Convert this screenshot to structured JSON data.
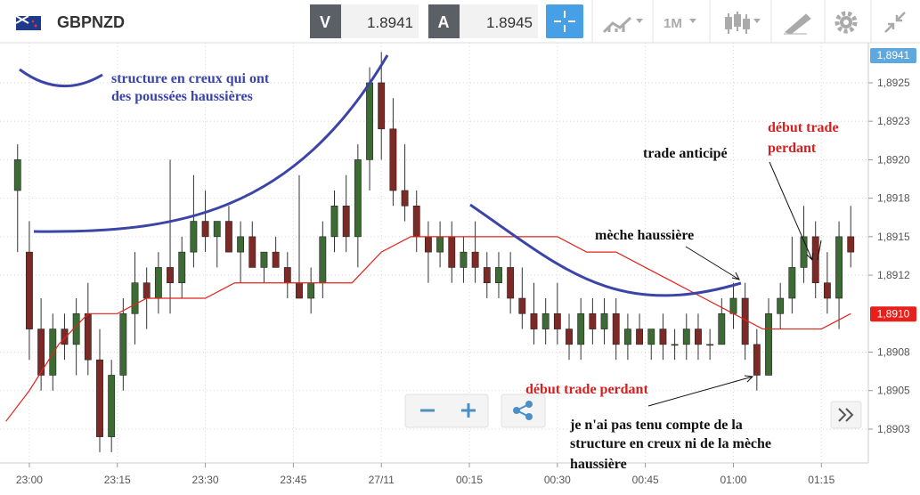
{
  "toolbar": {
    "symbol": "GBPNZD",
    "sell_label": "V",
    "sell_price": "1.8941",
    "buy_label": "A",
    "buy_price": "1.8945",
    "timeframe": "1M"
  },
  "chart_data": {
    "type": "candlestick",
    "x": [
      -2,
      0,
      2,
      4,
      6,
      8,
      10,
      12,
      14,
      16,
      18,
      20,
      22,
      24,
      26,
      28,
      30,
      32,
      34,
      36,
      38,
      40,
      42,
      44,
      46,
      48,
      50,
      52,
      54,
      56,
      58,
      60,
      62,
      64,
      66,
      68,
      70,
      72,
      74,
      76,
      78,
      80,
      82,
      84,
      86,
      88,
      90,
      92,
      94,
      96,
      98,
      100,
      102,
      104,
      106,
      108,
      110,
      112,
      114,
      116,
      118,
      120,
      122,
      124,
      126,
      128,
      130,
      132,
      134,
      136,
      138,
      140
    ],
    "open": [
      1.8918,
      1.8914,
      1.8909,
      1.8906,
      1.8909,
      1.8908,
      1.891,
      1.8907,
      1.8902,
      1.8906,
      1.891,
      1.8912,
      1.8911,
      1.8913,
      1.8912,
      1.8914,
      1.8916,
      1.8915,
      1.8916,
      1.8914,
      1.8915,
      1.8913,
      1.8914,
      1.8913,
      1.8912,
      1.8911,
      1.8912,
      1.8915,
      1.8917,
      1.8915,
      1.892,
      1.8925,
      1.8922,
      1.8918,
      1.8917,
      1.8915,
      1.8914,
      1.8915,
      1.8913,
      1.8914,
      1.8913,
      1.8912,
      1.8913,
      1.8911,
      1.891,
      1.8909,
      1.891,
      1.8909,
      1.8908,
      1.891,
      1.8909,
      1.891,
      1.8908,
      1.8909,
      1.8908,
      1.8909,
      1.8908,
      1.8908,
      1.8909,
      1.8908,
      1.8908,
      1.891,
      1.8911,
      1.8908,
      1.8906,
      1.891,
      1.8911,
      1.8913,
      1.8915,
      1.8912,
      1.8911,
      1.8915
    ],
    "high": [
      1.8921,
      1.8916,
      1.8911,
      1.891,
      1.891,
      1.8911,
      1.8912,
      1.8909,
      1.8907,
      1.8911,
      1.8914,
      1.8913,
      1.8914,
      1.892,
      1.8915,
      1.8919,
      1.8918,
      1.8916,
      1.8917,
      1.8916,
      1.8916,
      1.8914,
      1.8915,
      1.8914,
      1.8919,
      1.8913,
      1.8916,
      1.8918,
      1.8919,
      1.8921,
      1.8926,
      1.8927,
      1.8924,
      1.8921,
      1.8918,
      1.8916,
      1.8916,
      1.8916,
      1.8915,
      1.8916,
      1.8914,
      1.8914,
      1.8914,
      1.8913,
      1.8912,
      1.8911,
      1.8912,
      1.891,
      1.8911,
      1.8911,
      1.8911,
      1.8911,
      1.891,
      1.891,
      1.8909,
      1.891,
      1.8909,
      1.891,
      1.891,
      1.8909,
      1.8911,
      1.8912,
      1.8912,
      1.8909,
      1.8911,
      1.8912,
      1.8915,
      1.8917,
      1.8916,
      1.8914,
      1.8916,
      1.8917
    ],
    "low": [
      1.8914,
      1.8907,
      1.8905,
      1.8905,
      1.8907,
      1.8906,
      1.8906,
      1.8901,
      1.8901,
      1.8905,
      1.8908,
      1.8909,
      1.891,
      1.891,
      1.8911,
      1.8913,
      1.8914,
      1.8913,
      1.8914,
      1.8912,
      1.8913,
      1.8912,
      1.8913,
      1.8911,
      1.8911,
      1.891,
      1.8911,
      1.8914,
      1.8914,
      1.8913,
      1.8918,
      1.892,
      1.8917,
      1.8916,
      1.8914,
      1.8912,
      1.8913,
      1.8912,
      1.8912,
      1.8912,
      1.8911,
      1.8911,
      1.891,
      1.8909,
      1.8908,
      1.8908,
      1.8908,
      1.8907,
      1.8907,
      1.8908,
      1.8908,
      1.8907,
      1.8907,
      1.8908,
      1.8907,
      1.8907,
      1.8907,
      1.8907,
      1.8907,
      1.8907,
      1.8908,
      1.8909,
      1.8907,
      1.8905,
      1.8906,
      1.8909,
      1.891,
      1.8912,
      1.8911,
      1.891,
      1.8909,
      1.8913
    ],
    "close": [
      1.892,
      1.8909,
      1.8906,
      1.8909,
      1.8908,
      1.891,
      1.8907,
      1.8902,
      1.8906,
      1.891,
      1.8912,
      1.8911,
      1.8913,
      1.8912,
      1.8914,
      1.8916,
      1.8915,
      1.8916,
      1.8914,
      1.8915,
      1.8913,
      1.8914,
      1.8913,
      1.8912,
      1.8911,
      1.8912,
      1.8915,
      1.8917,
      1.8915,
      1.892,
      1.8925,
      1.8922,
      1.8918,
      1.8917,
      1.8915,
      1.8914,
      1.8915,
      1.8913,
      1.8914,
      1.8913,
      1.8912,
      1.8913,
      1.8911,
      1.891,
      1.8909,
      1.891,
      1.8909,
      1.8908,
      1.891,
      1.8909,
      1.891,
      1.8908,
      1.8909,
      1.8908,
      1.8909,
      1.8908,
      1.8908,
      1.8909,
      1.8908,
      1.8908,
      1.891,
      1.8911,
      1.8908,
      1.8906,
      1.891,
      1.8911,
      1.8913,
      1.8915,
      1.8912,
      1.8911,
      1.8915,
      1.8914
    ],
    "up_color": "#3d6b34",
    "down_color": "#7d2a26",
    "xlim": [
      -5,
      143
    ],
    "xticks": [
      {
        "value": 0,
        "label": "23:00"
      },
      {
        "value": 15,
        "label": "23:15"
      },
      {
        "value": 30,
        "label": "23:30"
      },
      {
        "value": 45,
        "label": "23:45"
      },
      {
        "value": 60,
        "label": "27/11"
      },
      {
        "value": 75,
        "label": "00:15"
      },
      {
        "value": 90,
        "label": "00:30"
      },
      {
        "value": 105,
        "label": "00:45"
      },
      {
        "value": 120,
        "label": "01:00"
      },
      {
        "value": 135,
        "label": "01:15"
      }
    ],
    "ylim": [
      1.89003,
      1.89276
    ],
    "yticks": [
      {
        "value": 1.8925,
        "label": "1,8925"
      },
      {
        "value": 1.89225,
        "label": "1,8923"
      },
      {
        "value": 1.892,
        "label": "1,8920"
      },
      {
        "value": 1.89175,
        "label": "1,8918"
      },
      {
        "value": 1.8915,
        "label": "1,8915"
      },
      {
        "value": 1.89125,
        "label": "1,8912"
      },
      {
        "value": 1.89075,
        "label": "1,8908"
      },
      {
        "value": 1.8905,
        "label": "1,8905"
      },
      {
        "value": 1.89025,
        "label": "1,8903"
      }
    ],
    "grid": true,
    "moving_average": {
      "color": "#e2231a",
      "x": [
        -4,
        0,
        5,
        10,
        15,
        20,
        25,
        30,
        35,
        40,
        45,
        50,
        55,
        60,
        65,
        70,
        75,
        80,
        85,
        90,
        95,
        100,
        105,
        110,
        115,
        120,
        125,
        130,
        135,
        140
      ],
      "values": [
        1.8903,
        1.8905,
        1.8908,
        1.891,
        1.891,
        1.8911,
        1.8911,
        1.8911,
        1.8912,
        1.8912,
        1.8912,
        1.8912,
        1.8912,
        1.8914,
        1.8915,
        1.8915,
        1.8915,
        1.8915,
        1.8915,
        1.8915,
        1.8914,
        1.8914,
        1.8913,
        1.8912,
        1.8911,
        1.891,
        1.8909,
        1.8909,
        1.8909,
        1.891
      ]
    },
    "price_markers": [
      {
        "value": 1.8941,
        "label": "1,8941",
        "color": "#5fa8de"
      },
      {
        "value": 1.891,
        "label": "1,8910",
        "color": "#e8201c"
      }
    ],
    "annotations": [
      {
        "lines": [
          "structure en creux qui ont",
          "des poussées haussières"
        ],
        "color": "#3b45a8"
      },
      {
        "lines": [
          "trade anticipé"
        ],
        "color": "#111111"
      },
      {
        "lines": [
          "début trade",
          "perdant"
        ],
        "color": "#d42020"
      },
      {
        "lines": [
          "mèche haussière"
        ],
        "color": "#111111"
      },
      {
        "lines": [
          "début trade perdant"
        ],
        "color": "#d42020"
      },
      {
        "lines": [
          "je n'ai pas tenu compte de la",
          "structure en creux ni de la mèche",
          "haussière"
        ],
        "color": "#111111"
      }
    ]
  }
}
